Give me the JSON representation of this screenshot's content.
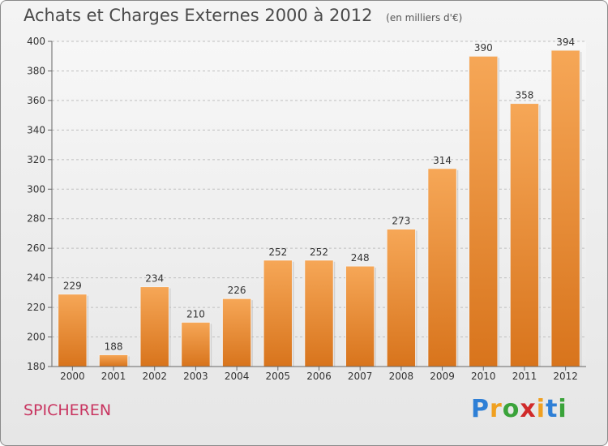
{
  "title": "Achats et Charges Externes 2000 à 2012",
  "unit": "(en milliers d'€)",
  "commune": "SPICHEREN",
  "logo": {
    "letters": [
      "P",
      "r",
      "o",
      "x",
      "i",
      "t",
      "i"
    ],
    "colors": [
      "#2e7fd6",
      "#f0a020",
      "#3aa33a",
      "#d02a2a",
      "#f0a020",
      "#2e7fd6",
      "#3aa33a"
    ]
  },
  "colors": {
    "bar_top": "#f6a757",
    "bar_bottom": "#d8741c",
    "grid": "#bfbfbf"
  },
  "chart_data": {
    "type": "bar",
    "categories": [
      "2000",
      "2001",
      "2002",
      "2003",
      "2004",
      "2005",
      "2006",
      "2007",
      "2008",
      "2009",
      "2010",
      "2011",
      "2012"
    ],
    "values": [
      229,
      188,
      234,
      210,
      226,
      252,
      252,
      248,
      273,
      314,
      390,
      358,
      394
    ],
    "data_labels": [
      "229",
      "188",
      "234",
      "210",
      "226",
      "252",
      "252",
      "248",
      "273",
      "314",
      "390",
      "358",
      "394"
    ],
    "ylim": [
      180,
      400
    ],
    "yticks": [
      180,
      200,
      220,
      240,
      260,
      280,
      300,
      320,
      340,
      360,
      380,
      400
    ],
    "ytick_labels": [
      "180",
      "200",
      "220",
      "240",
      "260",
      "280",
      "300",
      "320",
      "340",
      "360",
      "380",
      "400"
    ],
    "grid": true,
    "xlabel": "",
    "ylabel": ""
  }
}
